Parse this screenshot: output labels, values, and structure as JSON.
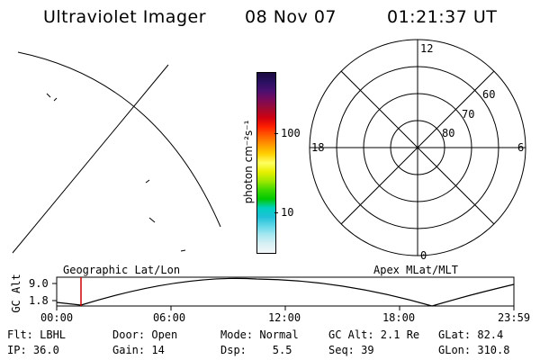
{
  "header": {
    "instrument": "Ultraviolet Imager",
    "date": "08 Nov 07",
    "time": "01:21:37 UT"
  },
  "colorbar": {
    "label": "photon cm⁻²s⁻¹",
    "ticks": [
      "100",
      "10"
    ],
    "colors": [
      "#1a0a40",
      "#2a1060",
      "#4a1070",
      "#7a0a5a",
      "#a00a30",
      "#d00010",
      "#ff2000",
      "#ff6000",
      "#ff9a00",
      "#ffd000",
      "#ffff60",
      "#e8f000",
      "#a0e800",
      "#40d800",
      "#00c800",
      "#00d0c0",
      "#20c0d8",
      "#60d8e8",
      "#a8e8f0",
      "#d8f0f4",
      "#f4f8fa"
    ]
  },
  "polar_plot": {
    "hour_labels": {
      "top": "12",
      "left": "18",
      "right": "6",
      "bottom": "0"
    },
    "lat_labels": [
      "60",
      "70",
      "80"
    ]
  },
  "timeline": {
    "y_axis_label": "GC Alt",
    "y_ticks": [
      "9.0",
      "1.8"
    ],
    "left_title": "Geographic Lat/Lon",
    "right_title": "Apex MLat/MLT",
    "x_ticks": [
      "00:00",
      "06:00",
      "12:00",
      "18:00",
      "23:59"
    ],
    "marker_time": "01:21",
    "marker_color": "#cc0000"
  },
  "info": {
    "row1": [
      {
        "key": "filter",
        "text": "Flt: LBHL"
      },
      {
        "key": "door",
        "text": "Door: Open"
      },
      {
        "key": "mode",
        "text": "Mode: Normal"
      },
      {
        "key": "gc_alt",
        "text": "GC Alt: 2.1 Re"
      },
      {
        "key": "glat",
        "text": "GLat: 82.4"
      }
    ],
    "row2": [
      {
        "key": "ip",
        "text": "IP: 36.0"
      },
      {
        "key": "gain",
        "text": "Gain: 14"
      },
      {
        "key": "dsp",
        "text": "Dsp:    5.5"
      },
      {
        "key": "seq",
        "text": "Seq: 39"
      },
      {
        "key": "glon",
        "text": "GLon: 310.8"
      }
    ]
  }
}
